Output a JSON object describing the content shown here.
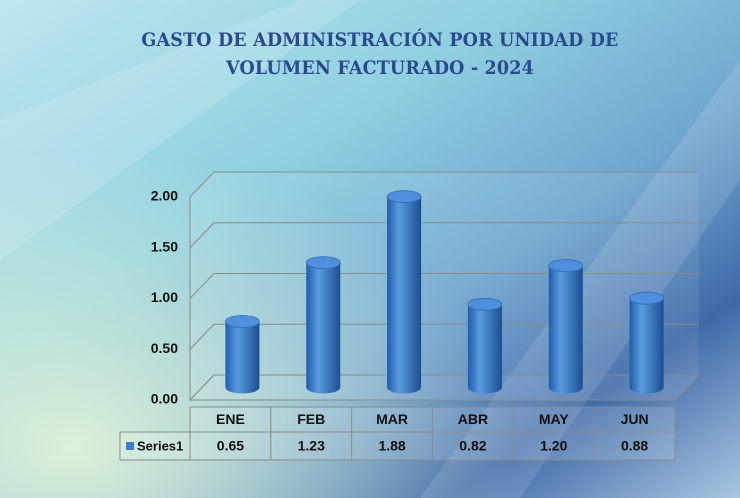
{
  "chart_data": {
    "type": "bar3d",
    "title": "GASTO DE ADMINISTRACIÓN POR UNIDAD DE VOLUMEN FACTURADO - 2024",
    "categories": [
      "ENE",
      "FEB",
      "MAR",
      "ABR",
      "MAY",
      "JUN"
    ],
    "series": [
      {
        "name": "Series1",
        "color": "#3b7fd0",
        "values": [
          0.65,
          1.23,
          1.88,
          0.82,
          1.2,
          0.88
        ],
        "value_labels": [
          "0.65",
          "1.23",
          "1.88",
          "0.82",
          "1.20",
          "0.88"
        ]
      }
    ],
    "ylim": [
      0,
      2
    ],
    "yticks": [
      {
        "value": 0,
        "label": "0.00"
      },
      {
        "value": 0.5,
        "label": "0.50"
      },
      {
        "value": 1,
        "label": "1.00"
      },
      {
        "value": 1.5,
        "label": "1.50"
      },
      {
        "value": 2,
        "label": "2.00"
      }
    ],
    "grid": true
  }
}
